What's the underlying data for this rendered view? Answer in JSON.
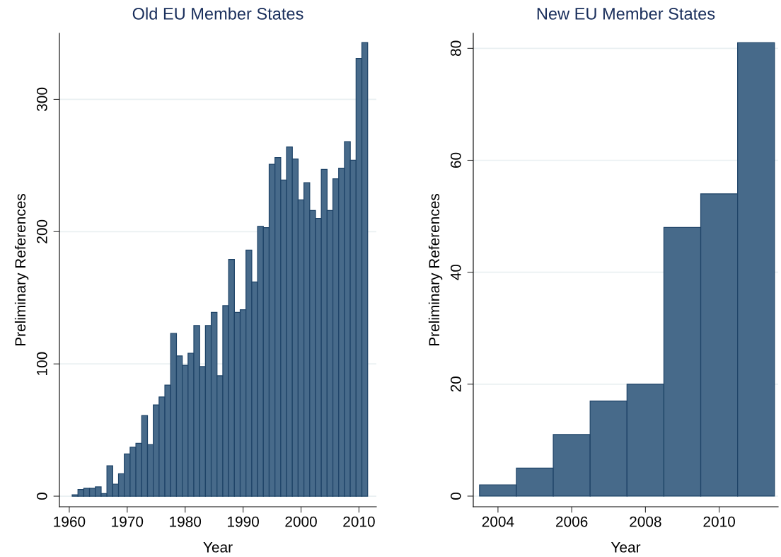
{
  "chart_data": [
    {
      "type": "histogram",
      "title": "Old EU Member States",
      "xlabel": "Year",
      "ylabel": "Preliminary References",
      "color": "#476a8a",
      "bins": [
        1960.5,
        1961.5,
        1962.5,
        1963.5,
        1964.5,
        1965.5,
        1966.5,
        1967.5,
        1968.5,
        1969.5,
        1970.5,
        1971.5,
        1972.5,
        1973.5,
        1974.5,
        1975.5,
        1976.5,
        1977.5,
        1978.5,
        1979.5,
        1980.5,
        1981.5,
        1982.5,
        1983.5,
        1984.5,
        1985.5,
        1986.5,
        1987.5,
        1988.5,
        1989.5,
        1990.5,
        1991.5,
        1992.5,
        1993.5,
        1994.5,
        1995.5,
        1996.5,
        1997.5,
        1998.5,
        1999.5,
        2000.5,
        2001.5,
        2002.5,
        2003.5,
        2004.5,
        2005.5,
        2006.5,
        2007.5,
        2008.5,
        2009.5,
        2010.5,
        2011.5
      ],
      "values": [
        1,
        5,
        6,
        6,
        7,
        2,
        23,
        9,
        17,
        32,
        37,
        40,
        61,
        39,
        69,
        75,
        84,
        123,
        106,
        99,
        108,
        129,
        98,
        129,
        139,
        91,
        144,
        179,
        139,
        141,
        186,
        162,
        204,
        203,
        251,
        256,
        239,
        264,
        255,
        224,
        237,
        216,
        210,
        247,
        216,
        240,
        248,
        268,
        254,
        331,
        343
      ],
      "xlim": [
        1958.3,
        2013
      ],
      "xticks": [
        1960,
        1970,
        1980,
        1990,
        2000,
        2010
      ],
      "ylim": [
        -8,
        350
      ],
      "yticks": [
        0,
        100,
        200,
        300
      ],
      "grid": "y"
    },
    {
      "type": "histogram",
      "title": "New EU Member States",
      "xlabel": "Year",
      "ylabel": "Preliminary References",
      "color": "#476a8a",
      "bins": [
        2003.5,
        2004.5,
        2005.5,
        2006.5,
        2007.5,
        2008.5,
        2009.5,
        2010.5,
        2011.5
      ],
      "values": [
        2,
        5,
        11,
        17,
        20,
        48,
        54,
        81
      ],
      "xlim": [
        2003.33,
        2011.6
      ],
      "xticks": [
        2004,
        2006,
        2008,
        2010
      ],
      "ylim": [
        -1.9,
        82.7
      ],
      "yticks": [
        0,
        20,
        40,
        60,
        80
      ],
      "grid": "y"
    }
  ]
}
